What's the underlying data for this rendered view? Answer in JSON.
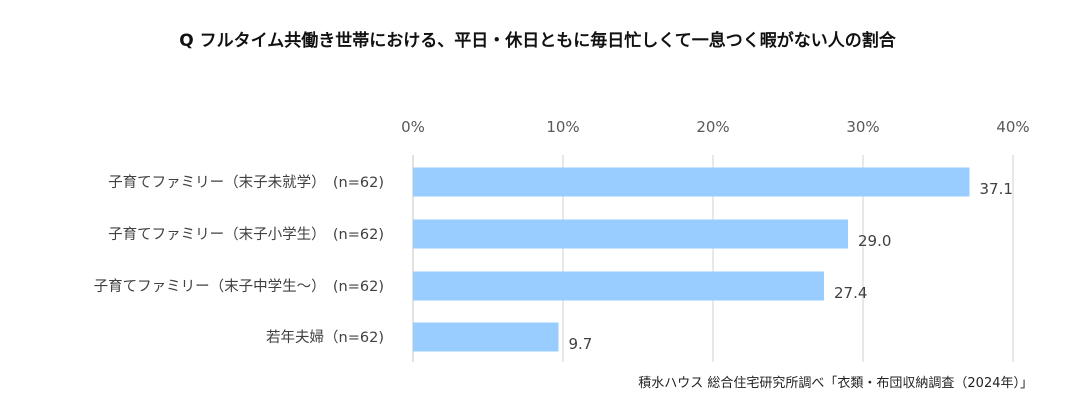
{
  "chart_data": {
    "type": "bar",
    "orientation": "horizontal",
    "title": "Q フルタイム共働き世帯における、平日・休日ともに毎日忙しくて一息つく暇がない人の割合",
    "categories": [
      "子育てファミリー（末子未就学）　(n=62)",
      "子育てファミリー（末子小学生）　(n=62)",
      "子育てファミリー（末子中学生～）　(n=62)",
      "若年夫婦（n=62)"
    ],
    "values": [
      37.1,
      29.0,
      27.4,
      9.7
    ],
    "value_labels": [
      "37.1",
      "29.0",
      "27.4",
      "9.7"
    ],
    "xlim": [
      0,
      40
    ],
    "x_ticks": [
      "0%",
      "10%",
      "20%",
      "30%",
      "40%"
    ],
    "tick_values": [
      0,
      10,
      20,
      30,
      40
    ],
    "grid": true,
    "bar_color": "#99CCFF",
    "source": "積水ハウス 総合住宅研究所調べ「衣類・布団収納調査（2024年）」"
  }
}
